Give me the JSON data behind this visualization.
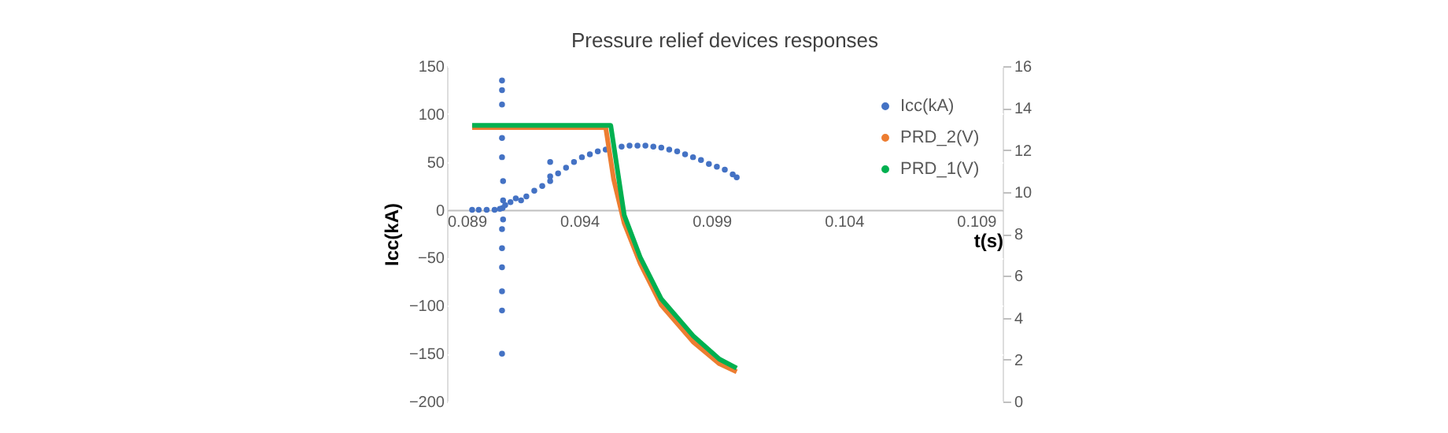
{
  "chart_data": {
    "type": "scatter",
    "title": "Pressure relief devices responses",
    "xlabel": "t(s)",
    "ylabel": "Icc(kA)",
    "xlim": [
      0.089,
      0.11
    ],
    "xticks": [
      0.089,
      0.094,
      0.099,
      0.104,
      0.109
    ],
    "ylim": [
      -200,
      150
    ],
    "yticks": [
      -200,
      -150,
      -100,
      -50,
      0,
      50,
      100,
      150
    ],
    "y2lim": [
      0,
      16
    ],
    "y2ticks": [
      0,
      2,
      4,
      6,
      8,
      10,
      12,
      14,
      16
    ],
    "grid": "y",
    "legend": "right",
    "series": [
      {
        "name": "Icc(kA)",
        "marker": "circle",
        "color": "#4472c4",
        "x": [
          0.08995,
          0.0902,
          0.0905,
          0.0908,
          0.091,
          0.0911,
          0.09108,
          0.09108,
          0.09108,
          0.09108,
          0.09108,
          0.09108,
          0.09108,
          0.09108,
          0.09108,
          0.09108,
          0.09108,
          0.09112,
          0.09112,
          0.09112,
          0.0912,
          0.0914,
          0.0916,
          0.0918,
          0.092,
          0.0923,
          0.0926,
          0.0929,
          0.0929,
          0.0929,
          0.0932,
          0.0935,
          0.0938,
          0.0941,
          0.0944,
          0.0947,
          0.095,
          0.0956,
          0.0959,
          0.0962,
          0.0965,
          0.0968,
          0.0971,
          0.0974,
          0.0977,
          0.098,
          0.0983,
          0.0986,
          0.0989,
          0.0992,
          0.0995,
          0.0998,
          0.09995
        ],
        "values": [
          0,
          0,
          0,
          0,
          1,
          2,
          135,
          125,
          110,
          75,
          55,
          -20,
          -40,
          -60,
          -85,
          -105,
          -150,
          30,
          -10,
          10,
          5,
          8,
          12,
          10,
          14,
          20,
          25,
          50,
          30,
          35,
          38,
          44,
          50,
          55,
          58,
          61,
          63,
          66,
          67,
          67,
          67,
          66,
          65,
          63,
          61,
          58,
          55,
          52,
          48,
          45,
          42,
          37,
          34
        ]
      },
      {
        "name": "PRD_2(V)",
        "type": "line",
        "marker": "none",
        "axis": "y2",
        "color": "#ed7d31",
        "x": [
          0.08995,
          0.095,
          0.0953,
          0.0957,
          0.0963,
          0.0971,
          0.0983,
          0.0993,
          0.09995
        ],
        "values": [
          13.07,
          13.07,
          10.6,
          8.5,
          6.6,
          4.6,
          2.85,
          1.8,
          1.42
        ]
      },
      {
        "name": "PRD_1(V)",
        "type": "line",
        "marker": "none",
        "axis": "y2",
        "color": "#00b050",
        "x": [
          0.08995,
          0.09519,
          0.0957,
          0.0963,
          0.0971,
          0.0983,
          0.0993,
          0.09995
        ],
        "values": [
          13.17,
          13.17,
          8.89,
          6.89,
          4.89,
          3.14,
          2.02,
          1.59
        ]
      }
    ]
  }
}
